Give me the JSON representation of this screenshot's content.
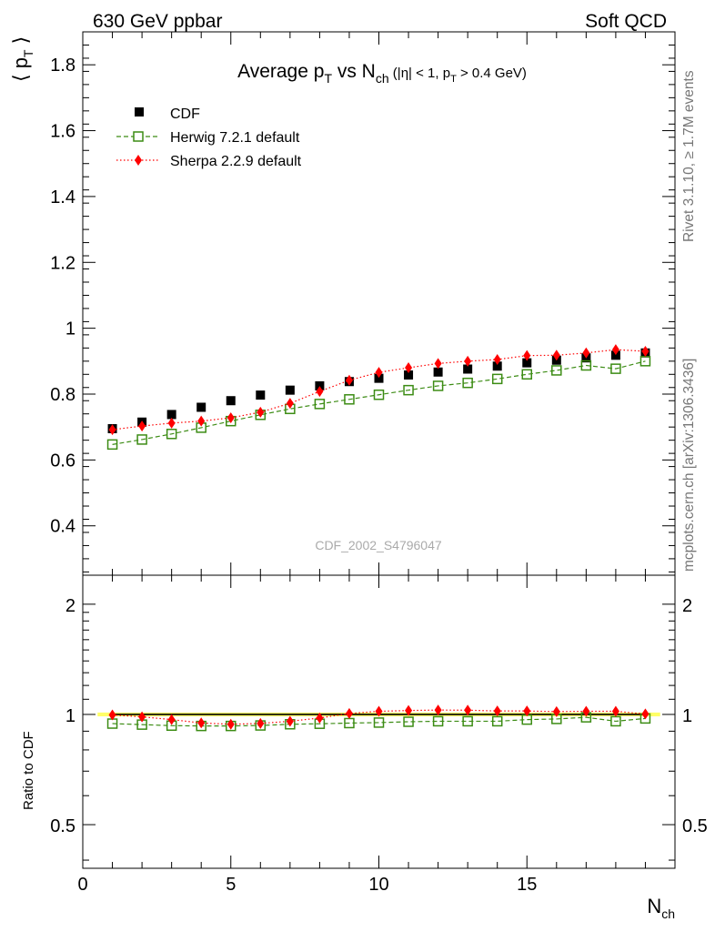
{
  "header": {
    "left": "630 GeV ppbar",
    "right": "Soft QCD"
  },
  "side_text": {
    "rivet": "Rivet 3.1.10, ≥ 1.7M events",
    "mcplots": "mcplots.cern.ch [arXiv:1306.3436]"
  },
  "chart_data": [
    {
      "type": "scatter",
      "panel": "main",
      "title": {
        "main": "Average p",
        "main_sub": "T",
        "vs": " vs N",
        "vs_sub": "ch",
        "cut_open": " (|η| < 1, p",
        "cut_sub": "T",
        "cut_close": " > 0.4 GeV)"
      },
      "ylabel": "⟨ p",
      "ylabel_sub": "T",
      "ylabel_close": " ⟩",
      "xlabel": "N",
      "xlabel_sub": "ch",
      "watermark": "CDF_2002_S4796047",
      "xlim": [
        0,
        20
      ],
      "ylim": [
        0.25,
        1.9
      ],
      "yticks": [
        {
          "v": 0.4,
          "label": "0.4"
        },
        {
          "v": 0.6,
          "label": "0.6"
        },
        {
          "v": 0.8,
          "label": "0.8"
        },
        {
          "v": 1.0,
          "label": "1"
        },
        {
          "v": 1.2,
          "label": "1.2"
        },
        {
          "v": 1.4,
          "label": "1.4"
        },
        {
          "v": 1.6,
          "label": "1.6"
        },
        {
          "v": 1.8,
          "label": "1.8"
        }
      ],
      "x": [
        1,
        2,
        3,
        4,
        5,
        6,
        7,
        8,
        9,
        10,
        11,
        12,
        13,
        14,
        15,
        16,
        17,
        18,
        19
      ],
      "series": [
        {
          "name": "CDF",
          "color": "#000000",
          "marker": "square-filled",
          "line": "none",
          "values": [
            0.695,
            0.715,
            0.738,
            0.76,
            0.78,
            0.797,
            0.812,
            0.825,
            0.838,
            0.848,
            0.858,
            0.867,
            0.876,
            0.885,
            0.895,
            0.903,
            0.91,
            0.918,
            0.925
          ]
        },
        {
          "name": "Herwig 7.2.1 default",
          "color": "#3c8c14",
          "marker": "square-open",
          "line": "dashed",
          "values": [
            0.647,
            0.662,
            0.679,
            0.698,
            0.718,
            0.737,
            0.755,
            0.77,
            0.784,
            0.798,
            0.812,
            0.825,
            0.834,
            0.846,
            0.86,
            0.872,
            0.887,
            0.877,
            0.9
          ]
        },
        {
          "name": "Sherpa 2.2.9 default",
          "color": "#ff0000",
          "marker": "diamond-filled",
          "line": "dotted",
          "values": [
            0.692,
            0.703,
            0.712,
            0.718,
            0.728,
            0.745,
            0.772,
            0.808,
            0.842,
            0.866,
            0.88,
            0.893,
            0.9,
            0.905,
            0.917,
            0.918,
            0.925,
            0.935,
            0.93
          ]
        }
      ]
    },
    {
      "type": "scatter",
      "panel": "ratio",
      "ylabel": "Ratio to CDF",
      "yscale": "log",
      "ylim": [
        0.38,
        2.4
      ],
      "band_color": "#ffff66",
      "yticks": [
        {
          "v": 0.5,
          "label": "0.5"
        },
        {
          "v": 1,
          "label": "1"
        },
        {
          "v": 2,
          "label": "2"
        }
      ],
      "xticks": [
        {
          "v": 0,
          "label": "0"
        },
        {
          "v": 5,
          "label": "5"
        },
        {
          "v": 10,
          "label": "10"
        },
        {
          "v": 15,
          "label": "15"
        }
      ],
      "x": [
        1,
        2,
        3,
        4,
        5,
        6,
        7,
        8,
        9,
        10,
        11,
        12,
        13,
        14,
        15,
        16,
        17,
        18,
        19
      ],
      "series": [
        {
          "name": "CDF",
          "color": "#000000",
          "marker": "none",
          "line": "solid",
          "values": [
            1,
            1,
            1,
            1,
            1,
            1,
            1,
            1,
            1,
            1,
            1,
            1,
            1,
            1,
            1,
            1,
            1,
            1,
            1
          ]
        },
        {
          "name": "Herwig 7.2.1 default",
          "color": "#3c8c14",
          "marker": "square-open",
          "line": "dashed",
          "values": [
            0.944,
            0.938,
            0.932,
            0.93,
            0.93,
            0.933,
            0.94,
            0.943,
            0.947,
            0.95,
            0.955,
            0.958,
            0.958,
            0.958,
            0.968,
            0.972,
            0.982,
            0.958,
            0.975
          ]
        },
        {
          "name": "Sherpa 2.2.9 default",
          "color": "#ff0000",
          "marker": "diamond-filled",
          "line": "dotted",
          "values": [
            0.997,
            0.985,
            0.968,
            0.948,
            0.94,
            0.945,
            0.958,
            0.978,
            1.006,
            1.02,
            1.025,
            1.028,
            1.027,
            1.022,
            1.022,
            1.018,
            1.02,
            1.02,
            1.003
          ]
        }
      ]
    }
  ]
}
